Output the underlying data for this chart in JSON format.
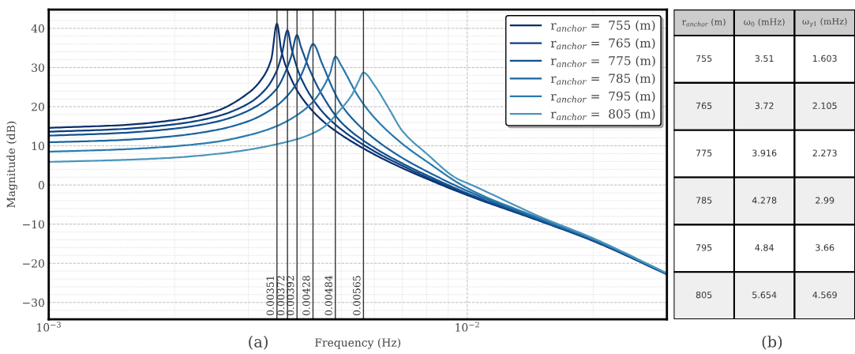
{
  "chart_data": [
    {
      "type": "line",
      "xlabel": "Frequency (Hz)",
      "ylabel": "Magnitude (dB)",
      "log": "x",
      "xlim": [
        0.001,
        0.03
      ],
      "ylim": [
        -34.3,
        44.8
      ],
      "xticks": [
        {
          "value": 0.001,
          "label": "10$^{−3}$"
        },
        {
          "value": 0.01,
          "label": "10$^{−2}$"
        }
      ],
      "yticks": [
        {
          "value": -30,
          "label": "−30"
        },
        {
          "value": -20,
          "label": "−20"
        },
        {
          "value": -10,
          "label": "−10"
        },
        0,
        10,
        20,
        30,
        40
      ],
      "grid": true,
      "legend": "top right",
      "line_style": "solid",
      "marker": "none",
      "annotations": [
        "(a)"
      ],
      "ref_lines": [
        {
          "axis": "x",
          "value": 0.00351,
          "label": "0.00351",
          "color": "#333333"
        },
        {
          "axis": "x",
          "value": 0.00372,
          "label": "0.00372",
          "color": "#333333"
        },
        {
          "axis": "x",
          "value": 0.00392,
          "label": "0.00392",
          "color": "#333333"
        },
        {
          "axis": "x",
          "value": 0.00428,
          "label": "0.00428",
          "color": "#333333"
        },
        {
          "axis": "x",
          "value": 0.00484,
          "label": "0.00484",
          "color": "#333333"
        },
        {
          "axis": "x",
          "value": 0.00565,
          "label": "0.00565",
          "color": "#333333"
        }
      ],
      "series": [
        {
          "name": "r$_{anchor}$ =  755 (m)",
          "color": "#0a2f6e",
          "x": [
            0.001,
            0.0015,
            0.002,
            0.0025,
            0.003,
            0.0032,
            0.0034,
            0.00351,
            0.0036,
            0.0038,
            0.004,
            0.0045,
            0.005,
            0.006,
            0.007,
            0.008,
            0.01,
            0.015,
            0.02,
            0.03
          ],
          "values": [
            14.6,
            15.3,
            16.6,
            18.8,
            23.5,
            26.5,
            32,
            41.2,
            34,
            27,
            22.7,
            16.5,
            12.8,
            7.8,
            4.3,
            1.6,
            -2.6,
            -9.3,
            -14.3,
            -22.8
          ]
        },
        {
          "name": "r$_{anchor}$ =  765 (m)",
          "color": "#0d3f80",
          "x": [
            0.001,
            0.0015,
            0.002,
            0.0025,
            0.003,
            0.0033,
            0.0035,
            0.0036,
            0.00372,
            0.0038,
            0.004,
            0.0045,
            0.005,
            0.006,
            0.007,
            0.008,
            0.01,
            0.015,
            0.02,
            0.03
          ],
          "values": [
            13.6,
            14.3,
            15.5,
            17.4,
            20.8,
            24.5,
            29,
            33,
            39.5,
            35,
            27.5,
            18.8,
            14.2,
            8.6,
            4.9,
            2.0,
            -2.4,
            -9.2,
            -14.2,
            -22.8
          ]
        },
        {
          "name": "r$_{anchor}$ =  775 (m)",
          "color": "#12518f",
          "x": [
            0.001,
            0.0015,
            0.002,
            0.0025,
            0.003,
            0.0035,
            0.0037,
            0.0038,
            0.00392,
            0.004,
            0.0042,
            0.0045,
            0.005,
            0.006,
            0.007,
            0.008,
            0.01,
            0.015,
            0.02,
            0.03
          ],
          "values": [
            12.6,
            13.3,
            14.4,
            16.1,
            19.0,
            24.5,
            29.5,
            33,
            38.3,
            35.5,
            29.5,
            23,
            16,
            9.5,
            5.5,
            2.5,
            -2.1,
            -9.1,
            -14.1,
            -22.7
          ]
        },
        {
          "name": "r$_{anchor}$ =  785 (m)",
          "color": "#1a649e",
          "x": [
            0.001,
            0.0015,
            0.002,
            0.0025,
            0.003,
            0.0035,
            0.0038,
            0.004,
            0.0041,
            0.00428,
            0.0045,
            0.0048,
            0.005,
            0.0055,
            0.006,
            0.007,
            0.008,
            0.01,
            0.015,
            0.02,
            0.03
          ],
          "values": [
            10.9,
            11.5,
            12.5,
            14.0,
            16.3,
            20.2,
            24,
            27.8,
            30.5,
            36.0,
            31,
            24,
            20.5,
            15.3,
            11.8,
            6.9,
            3.5,
            -1.5,
            -8.9,
            -14.0,
            -22.7
          ]
        },
        {
          "name": "r$_{anchor}$ =  795 (m)",
          "color": "#2a7aad",
          "x": [
            0.001,
            0.0015,
            0.002,
            0.0025,
            0.003,
            0.0035,
            0.004,
            0.0043,
            0.0045,
            0.0047,
            0.00484,
            0.005,
            0.0055,
            0.006,
            0.007,
            0.008,
            0.01,
            0.015,
            0.02,
            0.03
          ],
          "values": [
            8.5,
            9.1,
            9.9,
            11.0,
            12.7,
            15.0,
            18.5,
            21.5,
            24.5,
            28.5,
            32.8,
            30.5,
            22.5,
            17.2,
            10.5,
            6.0,
            -0.8,
            -8.6,
            -13.8,
            -22.6
          ]
        },
        {
          "name": "r$_{anchor}$ =  805 (m)",
          "color": "#4b95bb",
          "x": [
            0.001,
            0.0015,
            0.002,
            0.0025,
            0.003,
            0.0035,
            0.004,
            0.0045,
            0.005,
            0.0053,
            0.0055,
            0.00565,
            0.006,
            0.0065,
            0.007,
            0.008,
            0.0095,
            0.01,
            0.015,
            0.02,
            0.03
          ],
          "values": [
            5.9,
            6.4,
            7.0,
            7.9,
            9.0,
            10.4,
            12.0,
            14.5,
            19.5,
            23,
            26.5,
            28.7,
            25.5,
            19.5,
            13.8,
            8.0,
            1.5,
            0.5,
            -8.2,
            -13.6,
            -22.5
          ]
        }
      ]
    },
    {
      "type": "heatmap",
      "ylabel": "r$_{anchor}$ (m)",
      "categories": [
        "ω$_{0}$ (mHz)",
        "ω$_{γ1}$ (mHz)"
      ],
      "y_categories": [
        "755",
        "765",
        "775",
        "785",
        "795",
        "805"
      ],
      "cells": [
        [
          3.51,
          1.603
        ],
        [
          3.72,
          2.105
        ],
        [
          3.916,
          2.273
        ],
        [
          4.278,
          2.99
        ],
        [
          4.84,
          3.66
        ],
        [
          5.654,
          4.569
        ]
      ],
      "cell_labels": [
        [
          "3.51",
          "1.603"
        ],
        [
          "3.72",
          "2.105"
        ],
        [
          "3.916",
          "2.273"
        ],
        [
          "4.278",
          "2.99"
        ],
        [
          "4.84",
          "3.66"
        ],
        [
          "5.654",
          "4.569"
        ]
      ],
      "annotations": [
        "(b)"
      ]
    }
  ]
}
